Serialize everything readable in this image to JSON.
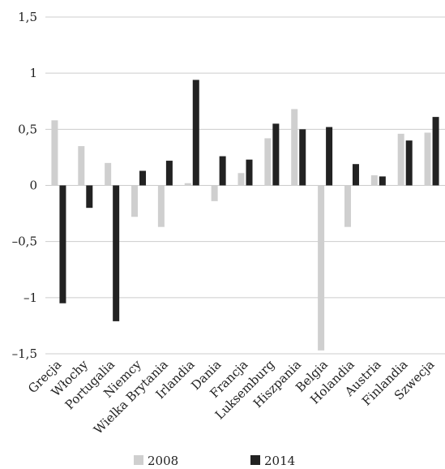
{
  "chart_data": {
    "type": "bar",
    "title": "",
    "xlabel": "",
    "ylabel": "",
    "ylim": [
      -1.5,
      1.5
    ],
    "yticks": [
      1.5,
      1,
      0.5,
      0,
      -0.5,
      -1,
      -1.5
    ],
    "ytick_labels": [
      "1,5",
      "1",
      "0,5",
      "0",
      "–0,5",
      "–1",
      "–1,5"
    ],
    "grid": true,
    "legend_position": "bottom",
    "categories": [
      "Grecja",
      "Włochy",
      "Portugalia",
      "Niemcy",
      "Wielka Brytania",
      "Irlandia",
      "Dania",
      "Francja",
      "Luksemburg",
      "Hiszpania",
      "Belgia",
      "Holandia",
      "Austria",
      "Finlandia",
      "Szwecja"
    ],
    "series": [
      {
        "name": "2008",
        "color": "#cfcfcf",
        "values": [
          0.58,
          0.35,
          0.2,
          -0.28,
          -0.37,
          0.02,
          -0.14,
          0.11,
          0.42,
          0.68,
          -1.47,
          -0.37,
          0.09,
          0.46,
          0.47
        ]
      },
      {
        "name": "2014",
        "color": "#222222",
        "values": [
          -1.05,
          -0.2,
          -1.21,
          0.13,
          0.22,
          0.94,
          0.26,
          0.23,
          0.55,
          0.5,
          0.52,
          0.19,
          0.08,
          0.4,
          0.61
        ]
      }
    ]
  }
}
